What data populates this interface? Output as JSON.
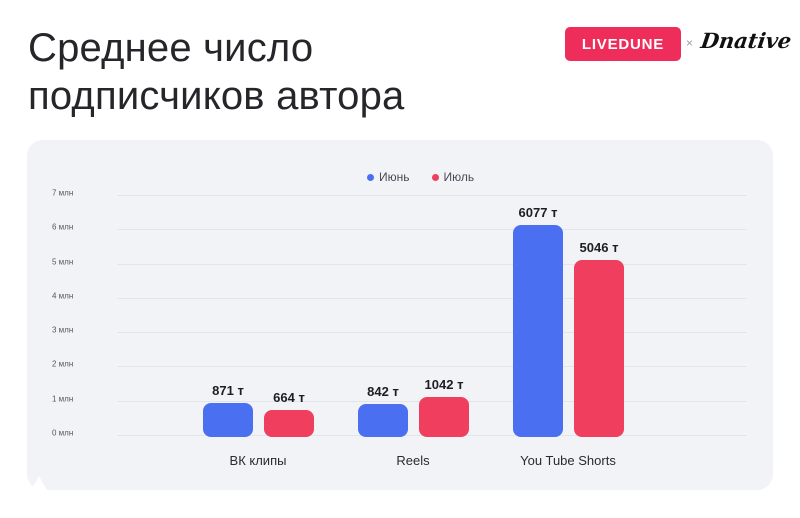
{
  "header": {
    "title_line1": "Среднее число",
    "title_line2": "подписчиков автора",
    "brand": "LIVEDUNE",
    "separator": "×",
    "partner": "Dnative"
  },
  "colors": {
    "june": "#4a6ff0",
    "july": "#f03e5e",
    "brand": "#ef2d5a"
  },
  "chart_data": {
    "type": "bar",
    "title": "Среднее число подписчиков автора",
    "xlabel": "",
    "ylabel": "",
    "ylim": [
      0,
      7000
    ],
    "yticks": [
      "0 млн",
      "1 млн",
      "2 млн",
      "3 млн",
      "4 млн",
      "5 млн",
      "6 млн",
      "7 млн"
    ],
    "grid": true,
    "legend_position": "top",
    "categories": [
      "ВК клипы",
      "Reels",
      "You Tube Shorts"
    ],
    "series": [
      {
        "name": "Июнь",
        "color": "#4a6ff0",
        "values": [
          871,
          842,
          6077
        ],
        "labels": [
          "871 т",
          "842 т",
          "6077 т"
        ]
      },
      {
        "name": "Июль",
        "color": "#f03e5e",
        "values": [
          664,
          1042,
          5046
        ],
        "labels": [
          "664 т",
          "1042 т",
          "5046 т"
        ]
      }
    ],
    "units": "тыс. подписчиков"
  }
}
